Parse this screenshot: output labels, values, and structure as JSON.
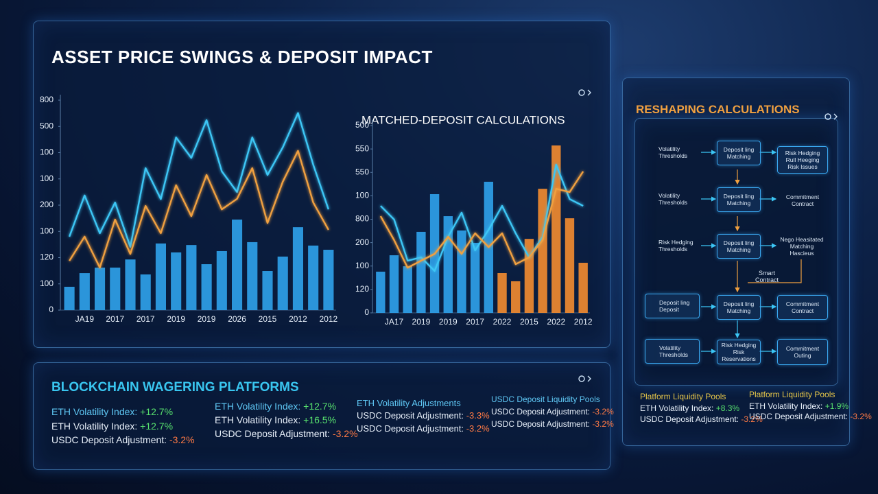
{
  "header": {
    "title": "ASSET PRICE SWINGS & DEPOSIT IMPACT"
  },
  "chart_data": [
    {
      "type": "combo",
      "categories": [
        null,
        "JA19",
        null,
        "2017",
        null,
        "2017",
        null,
        "2019",
        null,
        "2019",
        null,
        "2026",
        null,
        "2015",
        null,
        "2012",
        null,
        "2012"
      ],
      "series": [
        {
          "type": "bar",
          "color": "#2f9fe8",
          "values": [
            89,
            141,
            162,
            162,
            193,
            136,
            254,
            220,
            248,
            175,
            225,
            345,
            259,
            149,
            204,
            316,
            246,
            230
          ]
        },
        {
          "type": "line",
          "color": "#3cc6f5",
          "values": [
            280,
            437,
            293,
            410,
            241,
            541,
            423,
            658,
            580,
            724,
            529,
            450,
            658,
            515,
            620,
            751,
            554,
            384
          ]
        },
        {
          "type": "line",
          "color": "#f0a040",
          "values": [
            188,
            280,
            162,
            345,
            214,
            397,
            293,
            476,
            358,
            515,
            384,
            424,
            541,
            332,
            489,
            607,
            410,
            306
          ]
        }
      ],
      "ylim": [
        0,
        800
      ],
      "yticks": [
        0,
        100,
        {
          "value": 200,
          "label": "120"
        },
        {
          "value": 300,
          "label": "100"
        },
        {
          "value": 400,
          "label": "200"
        },
        {
          "value": 500,
          "label": "100"
        },
        {
          "value": 600,
          "label": "100"
        },
        {
          "value": 700,
          "label": "500"
        },
        800
      ]
    },
    {
      "type": "combo",
      "title": "MATCHED-DEPOSIT CALCULATIONS",
      "categories": [
        null,
        "JA17",
        null,
        "2019",
        null,
        "2019",
        null,
        "2017",
        null,
        "2022",
        null,
        "2015",
        null,
        "2022",
        null,
        "2012"
      ],
      "series": [
        {
          "type": "bar",
          "color": "#2f9fe8",
          "values": [
            176,
            246,
            199,
            346,
            507,
            413,
            352,
            299,
            560,
            null,
            null,
            null,
            null,
            null,
            null,
            null
          ]
        },
        {
          "type": "bar",
          "color": "#f08a30",
          "values": [
            null,
            null,
            null,
            null,
            null,
            null,
            null,
            null,
            null,
            170,
            135,
            316,
            530,
            715,
            404,
            214
          ]
        },
        {
          "type": "line",
          "color": "#3cc6f5",
          "values": [
            457,
            399,
            223,
            237,
            179,
            325,
            428,
            267,
            355,
            457,
            340,
            237,
            325,
            633,
            486,
            457
          ]
        },
        {
          "type": "line",
          "color": "#f0a040",
          "values": [
            413,
            311,
            193,
            223,
            252,
            325,
            252,
            340,
            281,
            340,
            208,
            237,
            311,
            530,
            516,
            604
          ]
        }
      ],
      "ylim": [
        0,
        800
      ],
      "yticks": [
        0,
        {
          "value": 100,
          "label": "120"
        },
        {
          "value": 200,
          "label": "100"
        },
        {
          "value": 300,
          "label": "200"
        },
        {
          "value": 400,
          "label": "800"
        },
        {
          "value": 500,
          "label": "100"
        },
        {
          "value": 600,
          "label": "550"
        },
        {
          "value": 700,
          "label": "550"
        },
        {
          "value": 800,
          "label": "500"
        }
      ]
    }
  ],
  "flow": {
    "title": "RESHAPING CALCULATIONS",
    "rows": [
      {
        "source": "Volatility\nThresholds",
        "process": "Deposit ling\nMatching",
        "result": "Risk Hedging\nRull Heeging\nRisk Issues"
      },
      {
        "source": "Volatility\nThresholds",
        "process": "Deposit ling\nMatching",
        "result": "Commitment\nContract"
      },
      {
        "source": "Risk Hedging\nThresholds",
        "process": "Deposit ling\nMatching",
        "result": "Nego Heasitated\nMatching\nHascieus"
      },
      {
        "source": "Deposit ling\nDeposit",
        "process": "Deposit ling\nMatching",
        "result": "Commitment\nContract"
      },
      {
        "source": "Volatility\nThresholds",
        "process": "Risk Hedging\nRisk Reservations",
        "result": "Commitment\nOuting"
      }
    ],
    "note": "Smart\nContract"
  },
  "platforms": {
    "title": "BLOCKCHAIN WAGERING PLATFORMS",
    "columns": [
      [
        {
          "label": "ETH Volatility Index:",
          "value": "+12.7%"
        },
        {
          "label": "ETH Volatility Index:",
          "value": "+12.7%"
        },
        {
          "label": "USDC Deposit Adjustment:",
          "value": "-3.2%"
        }
      ],
      [
        {
          "label": "ETH Volatility Index:",
          "value": "+12.7%"
        },
        {
          "label": "ETH Volatility Index:",
          "value": "+16.5%"
        },
        {
          "label": "USDC Deposit Adjustment:",
          "value": "-3.2%"
        }
      ],
      [
        {
          "label": "ETH Volatility Adjustments"
        },
        {
          "label": "USDC Deposit Adjustment:",
          "value": "-3.3%"
        },
        {
          "label": "USDC Deposit Adjustment:",
          "value": "-3.2%"
        }
      ],
      [
        {
          "label": "USDC Deposit Liquidity Pools"
        },
        {
          "label": "USDC Deposit Adjustment:",
          "value": "-3.2%"
        },
        {
          "label": "USDC Deposit Adjustment:",
          "value": "-3.2%"
        }
      ]
    ]
  },
  "pools": {
    "columns": [
      [
        {
          "label": "Platform Liquidity Pools"
        },
        {
          "label": "ETH Volatility Index:",
          "value": "+8.3%"
        },
        {
          "label": "USDC Deposit Adjustment:",
          "value": "-3.2%"
        }
      ],
      [
        {
          "label": "Platform Liquidity Pools"
        },
        {
          "label": "ETH Volatility Index:",
          "value": "+1.9%"
        },
        {
          "label": "USDC Deposit Adjustment:",
          "value": "-3.2%"
        }
      ]
    ]
  }
}
